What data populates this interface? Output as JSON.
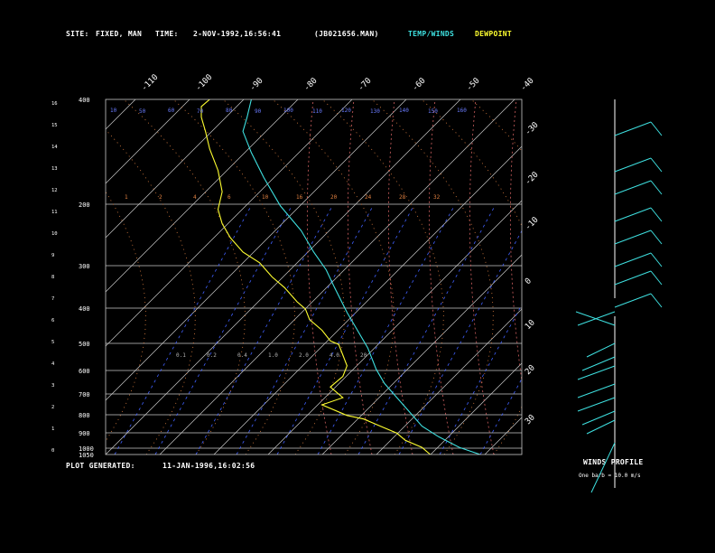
{
  "header": {
    "site_label": "SITE:",
    "site_value": "FIXED, MAN",
    "time_label": "TIME:",
    "time_value": "2-NOV-1992,16:56:41",
    "file_value": "(JB021656.MAN)",
    "legend_temp": "TEMP/WINDS",
    "legend_dew": "DEWPOINT"
  },
  "footer": {
    "generated_label": "PLOT GENERATED:",
    "generated_value": "11-JAN-1996,16:02:56",
    "winds_title": "WINDS PROFILE",
    "winds_note": "One barb = 10.0 m/s"
  },
  "colors": {
    "temp": "#3ee0e0",
    "dewpoint": "#ffff30",
    "isobar": "#c8c8c8",
    "isotherm": "#c8c8c8",
    "dry_adiabat": "#e08040",
    "moist_adiabat": "#d06060",
    "mixing_ratio": "#4060ff",
    "altitude_label": "#6a7cff"
  },
  "chart_data": {
    "type": "line",
    "title": "",
    "x_axis": "temperature (deg C, skewed)",
    "pressure_levels": [
      {
        "p": 400,
        "label": "400"
      },
      {
        "p": 200,
        "label": "200"
      },
      {
        "p": 300,
        "label": "300"
      },
      {
        "p": 400,
        "label": "400"
      },
      {
        "p": 500,
        "label": "500"
      },
      {
        "p": 600,
        "label": "600"
      },
      {
        "p": 700,
        "label": "700"
      },
      {
        "p": 800,
        "label": "800"
      },
      {
        "p": 900,
        "label": "900"
      },
      {
        "p": 1000,
        "label": "1000"
      },
      {
        "p": 1050,
        "label": "1050"
      }
    ],
    "top_isotherm_labels": [
      "-110",
      "-100",
      "-90",
      "-80",
      "-70",
      "-60",
      "-50",
      "-40"
    ],
    "right_isotherm_labels": [
      "-30",
      "-20",
      "-10",
      "0",
      "10",
      "20",
      "30"
    ],
    "altitude_km_labels": [
      "16",
      "15",
      "14",
      "13",
      "12",
      "11",
      "10",
      "9",
      "8",
      "7",
      "6",
      "5",
      "4",
      "3",
      "2",
      "1",
      "0"
    ],
    "dry_adiabat_labels": [
      "10",
      "50",
      "60",
      "70",
      "80",
      "90",
      "100",
      "110",
      "120",
      "130",
      "140",
      "150",
      "160"
    ],
    "mixing_ratio_labels": [
      "1",
      "2",
      "4",
      "6",
      "10",
      "16",
      "20",
      "24",
      "28",
      "32",
      "0.1",
      "0.2",
      "0.4",
      "1.0",
      "2.0",
      "4.0",
      "20"
    ],
    "series": [
      {
        "name": "TEMP/WINDS",
        "points": [
          [
            0.35,
            0.0
          ],
          [
            0.34,
            0.05
          ],
          [
            0.33,
            0.09
          ],
          [
            0.35,
            0.15
          ],
          [
            0.38,
            0.22
          ],
          [
            0.42,
            0.3
          ],
          [
            0.47,
            0.37
          ],
          [
            0.5,
            0.43
          ],
          [
            0.53,
            0.48
          ],
          [
            0.55,
            0.53
          ],
          [
            0.58,
            0.6
          ],
          [
            0.61,
            0.66
          ],
          [
            0.63,
            0.7
          ],
          [
            0.65,
            0.76
          ],
          [
            0.67,
            0.8
          ],
          [
            0.7,
            0.84
          ],
          [
            0.73,
            0.88
          ],
          [
            0.76,
            0.92
          ],
          [
            0.8,
            0.95
          ],
          [
            0.85,
            0.98
          ],
          [
            0.9,
            1.0
          ]
        ]
      },
      {
        "name": "DEWPOINT",
        "points": [
          [
            0.25,
            0.0
          ],
          [
            0.23,
            0.02
          ],
          [
            0.23,
            0.05
          ],
          [
            0.24,
            0.09
          ],
          [
            0.25,
            0.14
          ],
          [
            0.27,
            0.2
          ],
          [
            0.28,
            0.26
          ],
          [
            0.27,
            0.31
          ],
          [
            0.28,
            0.35
          ],
          [
            0.3,
            0.39
          ],
          [
            0.33,
            0.43
          ],
          [
            0.37,
            0.46
          ],
          [
            0.4,
            0.5
          ],
          [
            0.43,
            0.53
          ],
          [
            0.46,
            0.57
          ],
          [
            0.48,
            0.59
          ],
          [
            0.49,
            0.62
          ],
          [
            0.52,
            0.65
          ],
          [
            0.54,
            0.68
          ],
          [
            0.56,
            0.69
          ],
          [
            0.57,
            0.72
          ],
          [
            0.58,
            0.75
          ],
          [
            0.57,
            0.78
          ],
          [
            0.54,
            0.81
          ],
          [
            0.57,
            0.84
          ],
          [
            0.52,
            0.86
          ],
          [
            0.58,
            0.89
          ],
          [
            0.62,
            0.9
          ],
          [
            0.66,
            0.92
          ],
          [
            0.7,
            0.94
          ],
          [
            0.72,
            0.96
          ],
          [
            0.76,
            0.98
          ],
          [
            0.78,
            1.0
          ]
        ]
      }
    ]
  }
}
